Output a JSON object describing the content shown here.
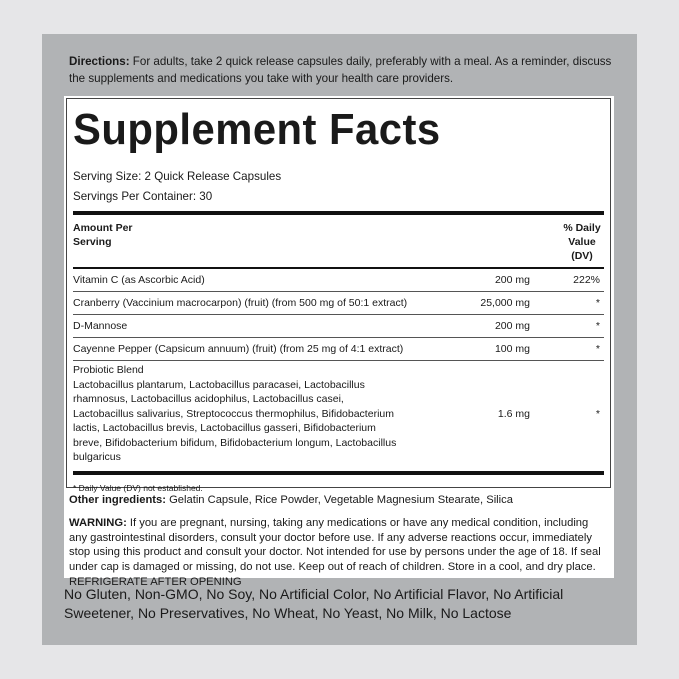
{
  "directions": {
    "label": "Directions:",
    "text": " For adults, take 2 quick release capsules daily, preferably with a meal. As a reminder, discuss the supplements and medications you take with your health care providers."
  },
  "facts": {
    "title": "Supplement Facts",
    "serving_size": "Serving Size: 2 Quick Release Capsules",
    "servings_per_container": "Servings Per Container: 30",
    "header_amount": "Amount Per Serving",
    "header_dv": "% Daily Value (DV)",
    "rows": [
      {
        "name": "Vitamin C (as Ascorbic Acid)",
        "amount": "200 mg",
        "dv": "222%"
      },
      {
        "name": "Cranberry (Vaccinium macrocarpon) (fruit) (from 500 mg of 50:1 extract)",
        "amount": "25,000 mg",
        "dv": "*"
      },
      {
        "name": "D-Mannose",
        "amount": "200 mg",
        "dv": "*"
      },
      {
        "name": "Cayenne Pepper (Capsicum annuum) (fruit) (from 25 mg of 4:1 extract)",
        "amount": "100 mg",
        "dv": "*"
      },
      {
        "name": "Probiotic Blend",
        "detail": "Lactobacillus plantarum, Lactobacillus paracasei, Lactobacillus rhamnosus, Lactobacillus acidophilus, Lactobacillus casei, Lactobacillus salivarius, Streptococcus thermophilus, Bifidobacterium lactis, Lactobacillus brevis, Lactobacillus gasseri, Bifidobacterium breve, Bifidobacterium bifidum, Bifidobacterium longum, Lactobacillus bulgaricus",
        "amount": "1.6 mg",
        "dv": "*"
      }
    ],
    "footnote": "* Daily Value (DV) not established."
  },
  "other": {
    "label": "Other ingredients:",
    "text": " Gelatin Capsule, Rice Powder, Vegetable Magnesium Stearate, Silica"
  },
  "warning": {
    "label": "WARNING:",
    "text": " If you are pregnant, nursing, taking any medications or have any medical condition, including any gastrointestinal disorders, consult your doctor before use. If any adverse reactions occur, immediately stop using this product and consult your doctor. Not intended for use by persons under the age of 18. If seal under cap is damaged or missing, do not use. Keep out of reach of children. Store in a cool, and dry place. REFRIGERATE AFTER OPENING"
  },
  "claims": "No Gluten, Non-GMO, No Soy, No Artificial Color, No Artificial Flavor, No Artificial Sweetener, No Preservatives, No Wheat, No Yeast, No Milk, No Lactose"
}
